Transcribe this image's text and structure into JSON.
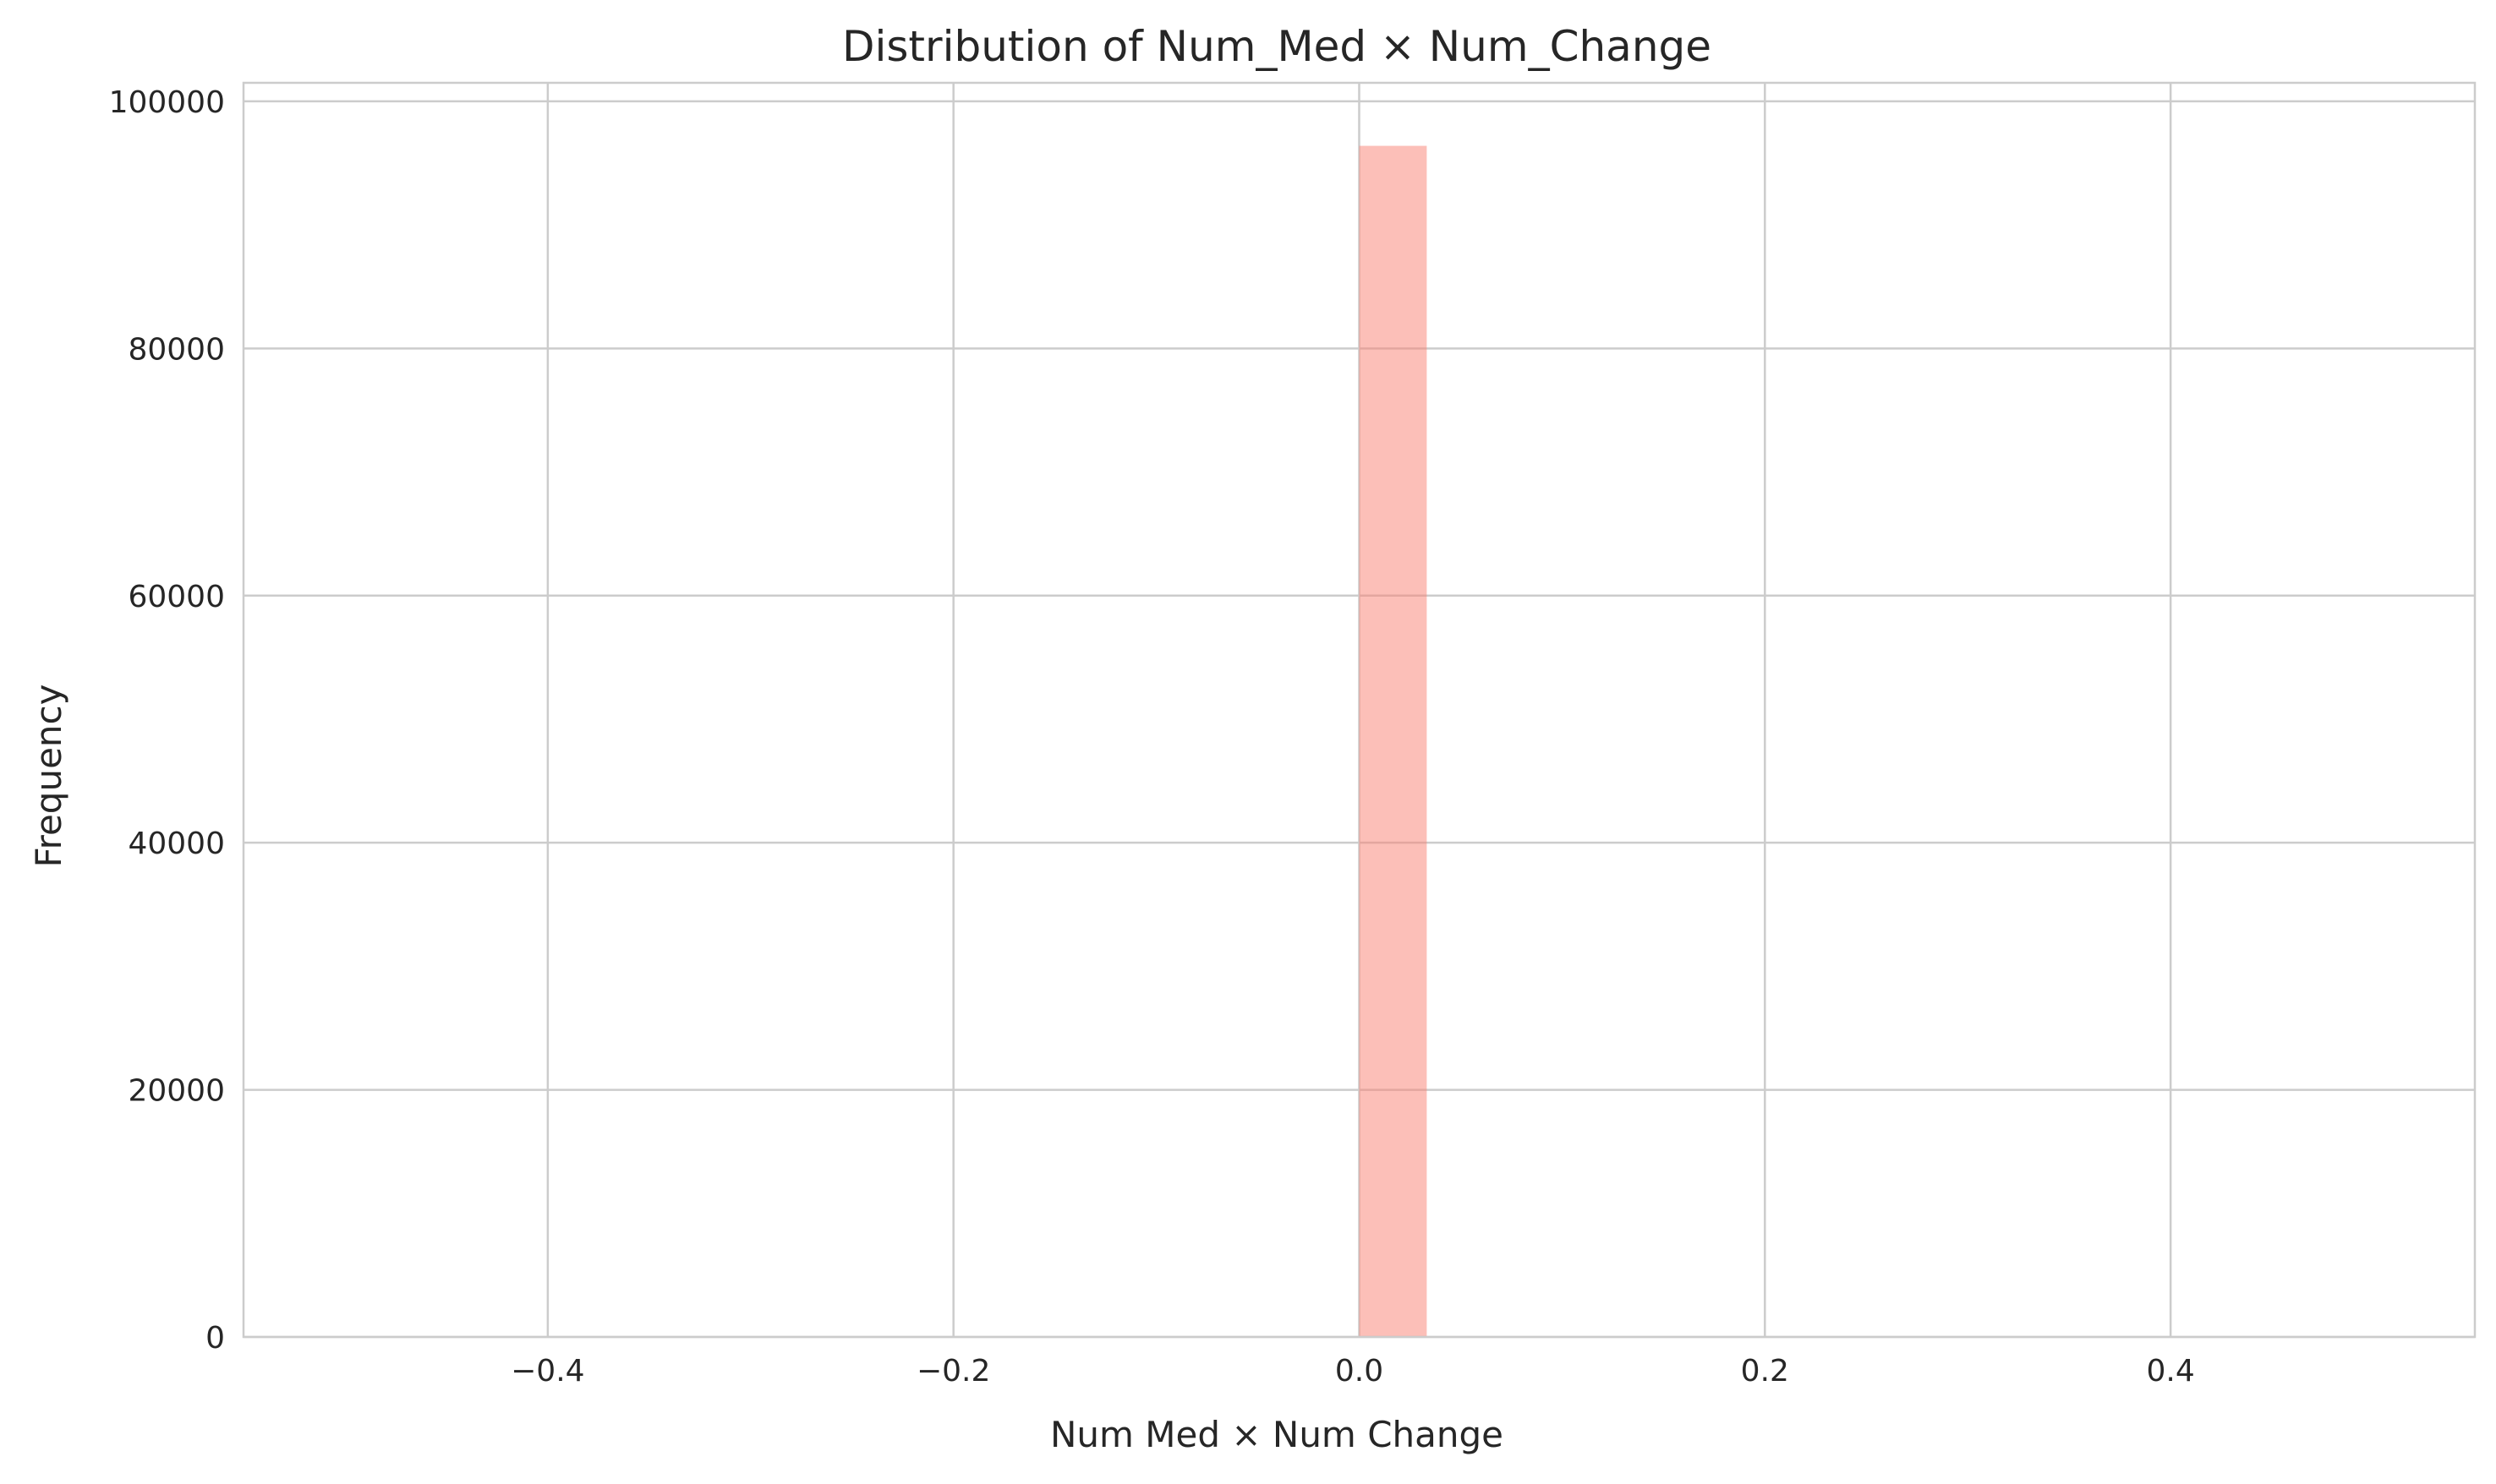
{
  "chart_data": {
    "type": "bar",
    "title": "Distribution of Num_Med × Num_Change",
    "xlabel": "Num Med × Num Change",
    "ylabel": "Frequency",
    "xlim": [
      -0.55,
      0.55
    ],
    "ylim": [
      0,
      101500
    ],
    "x_ticks": [
      -0.4,
      -0.2,
      0.0,
      0.2,
      0.4
    ],
    "x_tick_labels": [
      "−0.4",
      "−0.2",
      "0.0",
      "0.2",
      "0.4"
    ],
    "y_ticks": [
      0,
      20000,
      40000,
      60000,
      80000,
      100000
    ],
    "y_tick_labels": [
      "0",
      "20000",
      "40000",
      "60000",
      "80000",
      "100000"
    ],
    "bins": [
      {
        "x0": 0.0,
        "x1": 0.0333,
        "count": 96400
      }
    ],
    "grid": true,
    "legend": "none",
    "colors": {
      "bar_fill": "#fa8072",
      "bar_opacity": 0.5,
      "grid": "#cccccc",
      "axis_frame": "#cccccc",
      "text": "#262626",
      "background": "#ffffff"
    }
  }
}
